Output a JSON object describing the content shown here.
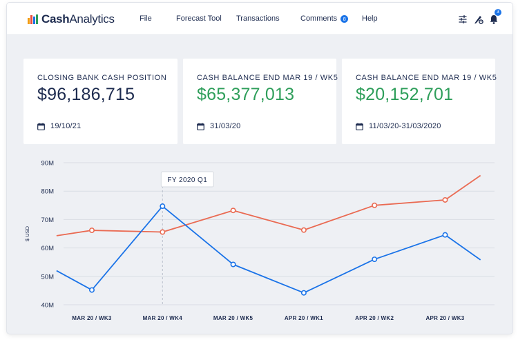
{
  "app": {
    "logo_text_bold": "Cash",
    "logo_text_rest": "Analytics",
    "logo_bar_colors": [
      "#f39c12",
      "#e74c3c",
      "#1a73e8",
      "#2e9e5a"
    ]
  },
  "nav": {
    "items": [
      {
        "label": "File"
      },
      {
        "label": "Forecast Tool"
      },
      {
        "label": "Transactions"
      },
      {
        "label": "Comments",
        "badge": "8"
      },
      {
        "label": "Help"
      }
    ]
  },
  "toolbar": {
    "icons": [
      "sliders-icon",
      "settings-shield-icon",
      "bell-icon"
    ],
    "bell_badge": "3"
  },
  "cards": [
    {
      "title": "CLOSING BANK CASH POSITION",
      "value": "$96,186,715",
      "date": "19/10/21",
      "value_color": "#1d2b4f",
      "icon": "calendar-icon"
    },
    {
      "title": "CASH BALANCE END MAR 19 / WK5",
      "value": "$65,377,013",
      "date": "31/03/20",
      "value_color": "#2e9e5a",
      "icon": "calendar-icon"
    },
    {
      "title": "CASH BALANCE END MAR 19 / WK5",
      "value": "$20,152,701",
      "date": "11/03/20-31/03/2020",
      "value_color": "#2e9e5a",
      "icon": "calendar-icon"
    }
  ],
  "chart_data": {
    "type": "line",
    "ylabel": "$ USD",
    "xlabel": "",
    "ylim": [
      40,
      90
    ],
    "yticks": [
      "90M",
      "80M",
      "70M",
      "60M",
      "50M",
      "40M"
    ],
    "ytick_values": [
      90,
      80,
      70,
      60,
      50,
      40
    ],
    "categories": [
      "MAR 20 / WK3",
      "MAR 20 / WK4",
      "MAR 20 / WK5",
      "APR 20 / WK1",
      "APR 20 / WK2",
      "APR 20 / WK3"
    ],
    "x_range": [
      -0.5,
      6.0
    ],
    "annotation": {
      "label": "FY 2020 Q1",
      "x": 1.0
    },
    "grid": true,
    "series": [
      {
        "color": "#ea6a52",
        "points": [
          [
            -0.5,
            64.3
          ],
          [
            0,
            66.2
          ],
          [
            1,
            65.6
          ],
          [
            2,
            73.2
          ],
          [
            3,
            66.3
          ],
          [
            4,
            75.0
          ],
          [
            5,
            76.9
          ],
          [
            5.5,
            85.5
          ]
        ],
        "markers": [
          0,
          1,
          2,
          3,
          4,
          5
        ]
      },
      {
        "color": "#1a73e8",
        "points": [
          [
            -0.5,
            52.0
          ],
          [
            0,
            45.2
          ],
          [
            1,
            74.7
          ],
          [
            2,
            54.2
          ],
          [
            3,
            44.2
          ],
          [
            4,
            56.0
          ],
          [
            5,
            64.6
          ],
          [
            5.5,
            55.8
          ]
        ],
        "markers": [
          0,
          1,
          2,
          3,
          4,
          5
        ]
      }
    ]
  }
}
